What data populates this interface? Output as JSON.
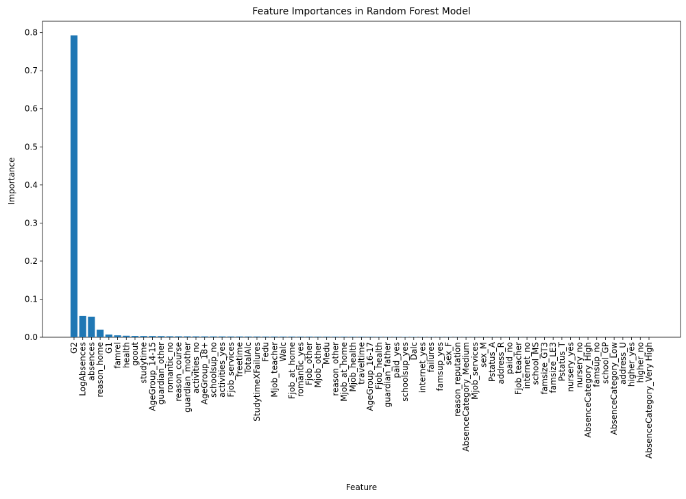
{
  "chart_data": {
    "type": "bar",
    "title": "Feature Importances in Random Forest Model",
    "xlabel": "Feature",
    "ylabel": "Importance",
    "ylim": [
      0,
      0.83
    ],
    "yticks": [
      "0.0",
      "0.1",
      "0.2",
      "0.3",
      "0.4",
      "0.5",
      "0.6",
      "0.7",
      "0.8"
    ],
    "bar_color": "#1f77b4",
    "categories": [
      "G2",
      "LogAbsences",
      "absences",
      "reason_home",
      "G1",
      "famrel",
      "health",
      "goout",
      "studytime",
      "AgeGroup_14-15",
      "guardian_other",
      "romantic_no",
      "reason_course",
      "guardian_mother",
      "activities_no",
      "AgeGroup_18+",
      "schoolsup_no",
      "activities_yes",
      "Fjob_services",
      "freetime",
      "TotalAlc",
      "StudytimeXFailures",
      "Fedu",
      "Mjob_teacher",
      "Walc",
      "Fjob_at_home",
      "romantic_yes",
      "Fjob_other",
      "Mjob_other",
      "Medu",
      "reason_other",
      "Mjob_at_home",
      "Mjob_health",
      "traveltime",
      "AgeGroup_16-17",
      "Fjob_health",
      "guardian_father",
      "paid_yes",
      "schoolsup_yes",
      "Dalc",
      "internet_yes",
      "failures",
      "famsup_yes",
      "sex_F",
      "reason_reputation",
      "AbsenceCategory_Medium",
      "Mjob_services",
      "sex_M",
      "Pstatus_A",
      "address_R",
      "paid_no",
      "Fjob_teacher",
      "internet_no",
      "school_MS",
      "famsize_GT3",
      "famsize_LE3",
      "Pstatus_T",
      "nursery_yes",
      "nursery_no",
      "AbsenceCategory_High",
      "famsup_no",
      "school_GP",
      "AbsenceCategory_Low",
      "address_U",
      "higher_yes",
      "higher_no",
      "AbsenceCategory_Very High"
    ],
    "values": [
      0.793,
      0.056,
      0.054,
      0.02,
      0.007,
      0.005,
      0.004,
      0.0035,
      0.0033,
      0.0032,
      0.003,
      0.0026,
      0.0025,
      0.0024,
      0.0023,
      0.0022,
      0.0021,
      0.0021,
      0.002,
      0.002,
      0.0019,
      0.0019,
      0.0018,
      0.0018,
      0.0017,
      0.0017,
      0.0016,
      0.0016,
      0.0015,
      0.0015,
      0.0014,
      0.0014,
      0.0013,
      0.0013,
      0.0012,
      0.0011,
      0.001,
      0.001,
      0.0009,
      0.0009,
      0.0008,
      0.0008,
      0.0007,
      0.0007,
      0.0006,
      0.0006,
      0.0005,
      0.0005,
      0.0005,
      0.0004,
      0.0004,
      0.0004,
      0.0003,
      0.0003,
      0.0003,
      0.0002,
      0.0002,
      0.0002,
      0.0002,
      0.0001,
      0.0001,
      0.0001,
      0.0001,
      0.0001,
      5e-05,
      5e-05,
      2e-05
    ]
  }
}
